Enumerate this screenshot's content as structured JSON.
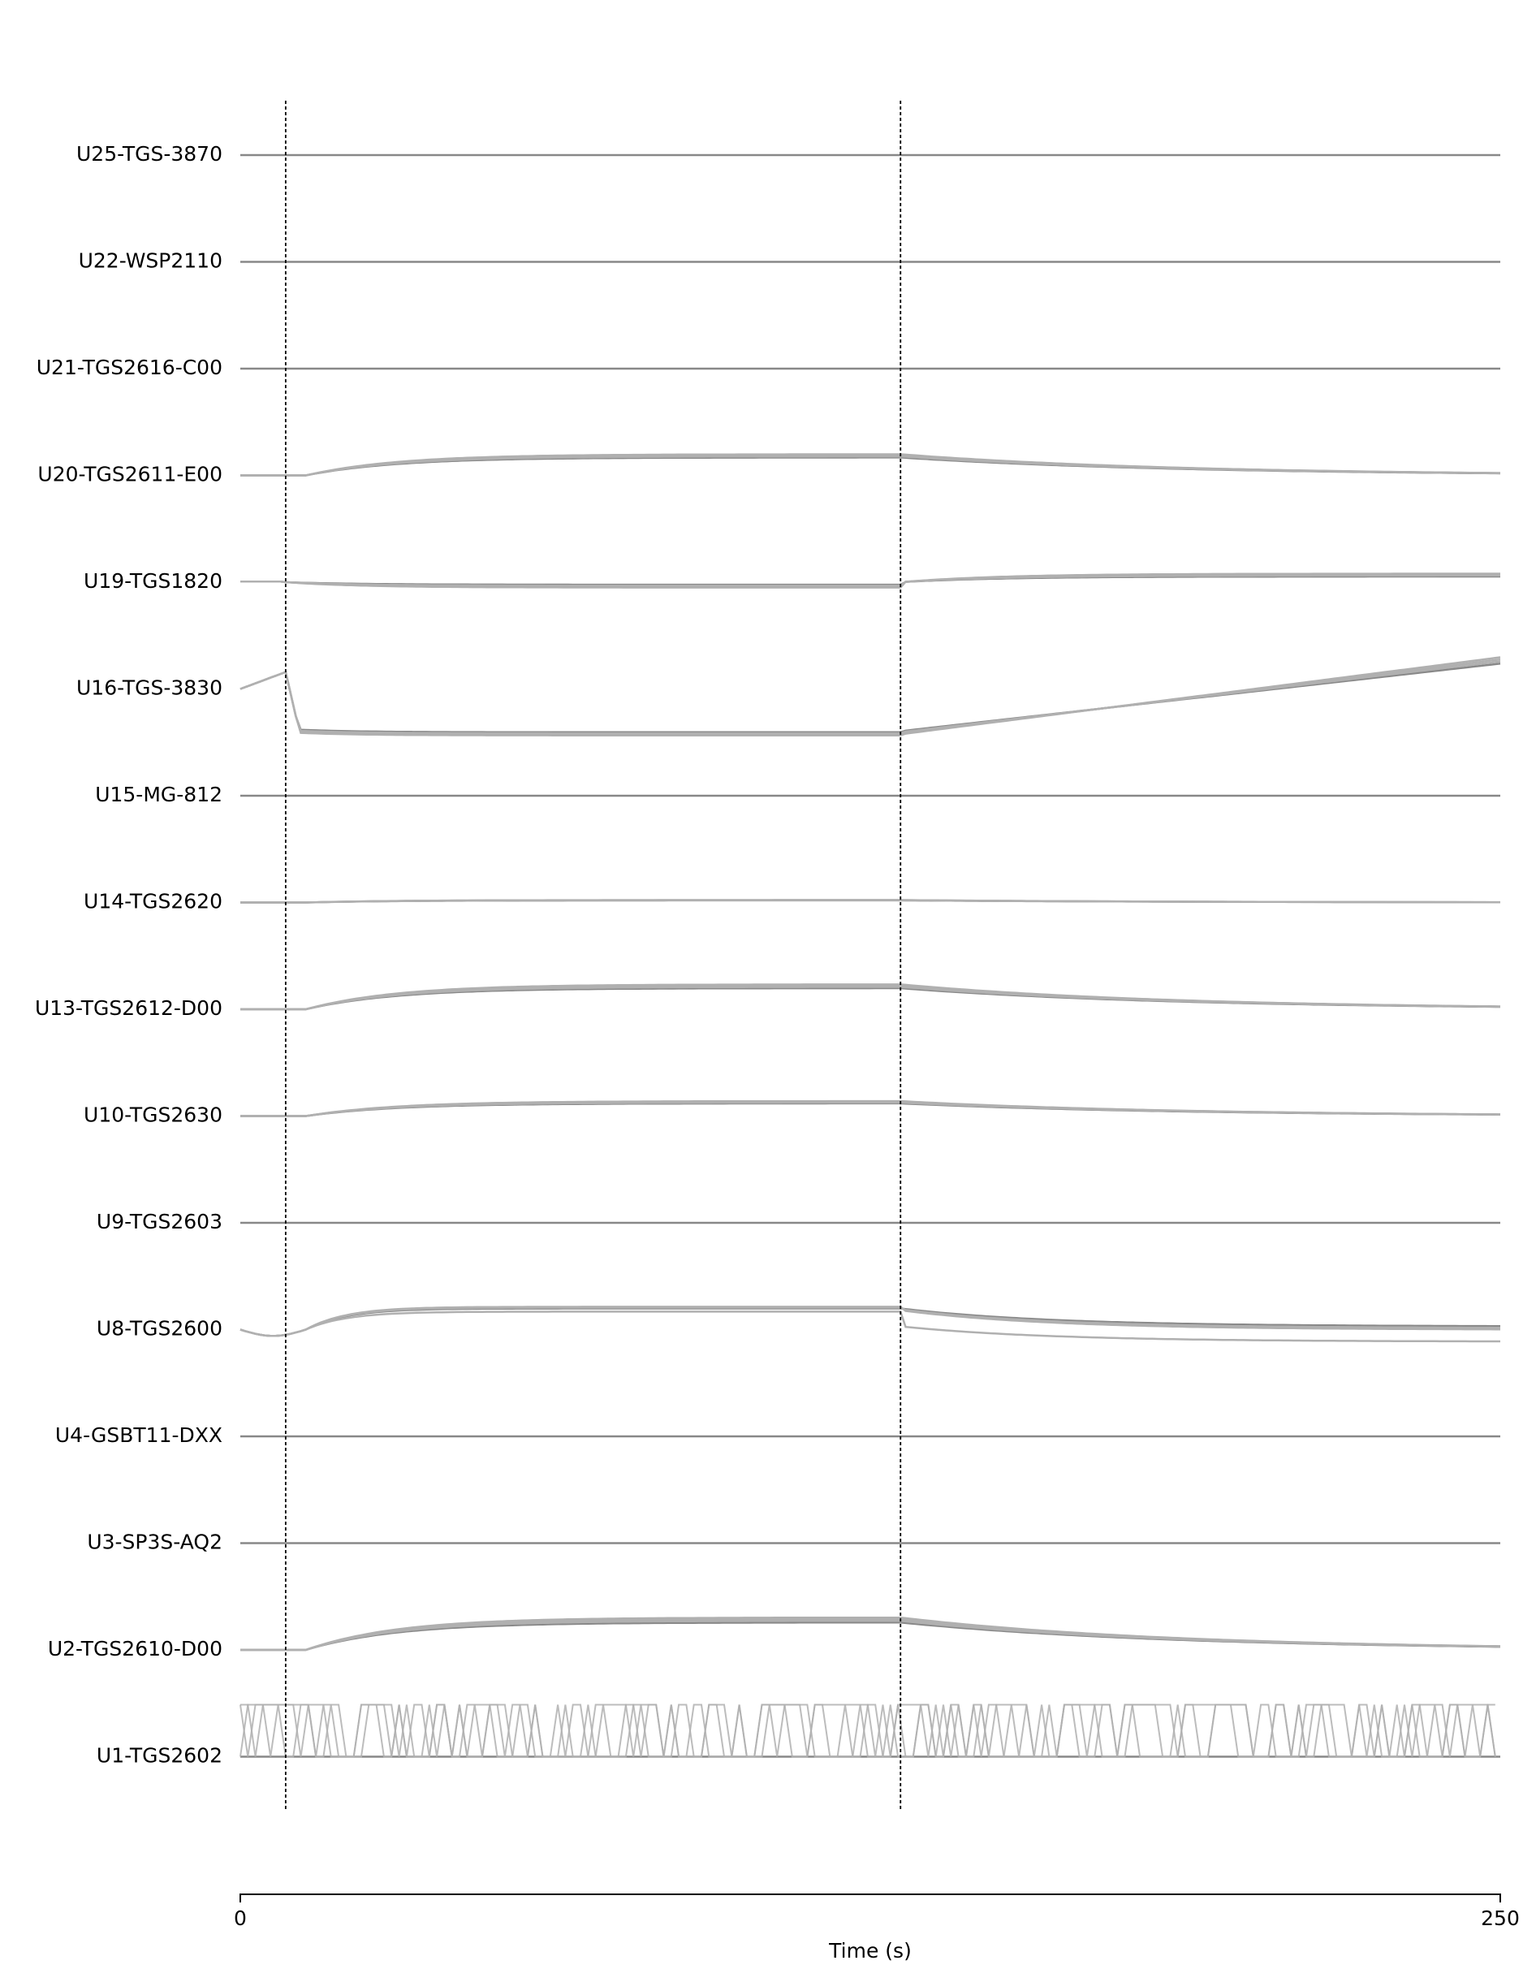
{
  "chart_data": {
    "type": "line",
    "xlabel": "Time (s)",
    "xlim": [
      0,
      250
    ],
    "x_ticks": [
      "0",
      "250"
    ],
    "event_markers": [
      9,
      131
    ],
    "grid": false,
    "colors": {
      "trace": "#888888",
      "trace_light": "#b0b0b0",
      "marker": "#000000",
      "axis": "#000000"
    },
    "rows": [
      {
        "label": "U25-TGS-3870",
        "profile": "flat"
      },
      {
        "label": "U22-WSP2110",
        "profile": "flat"
      },
      {
        "label": "U21-TGS2616-C00",
        "profile": "flat"
      },
      {
        "label": "U20-TGS2611-E00",
        "profile": "rise",
        "amplitude": 0.85
      },
      {
        "label": "U19-TGS1820",
        "profile": "dip-then-rise",
        "amplitude": 0.3
      },
      {
        "label": "U16-TGS-3830",
        "profile": "spike-drop-recover",
        "amplitude": 1.0
      },
      {
        "label": "U15-MG-812",
        "profile": "flat"
      },
      {
        "label": "U14-TGS2620",
        "profile": "rise",
        "amplitude": 0.1
      },
      {
        "label": "U13-TGS2612-D00",
        "profile": "rise",
        "amplitude": 1.0
      },
      {
        "label": "U10-TGS2630",
        "profile": "rise",
        "amplitude": 0.6
      },
      {
        "label": "U9-TGS2603",
        "profile": "flat"
      },
      {
        "label": "U8-TGS2600",
        "profile": "rise-slow-return",
        "amplitude": 1.0
      },
      {
        "label": "U4-GSBT11-DXX",
        "profile": "flat"
      },
      {
        "label": "U3-SP3S-AQ2",
        "profile": "flat"
      },
      {
        "label": "U2-TGS2610-D00",
        "profile": "rise",
        "amplitude": 1.3
      },
      {
        "label": "U1-TGS2602",
        "profile": "noise",
        "amplitude": 1.0
      }
    ]
  }
}
